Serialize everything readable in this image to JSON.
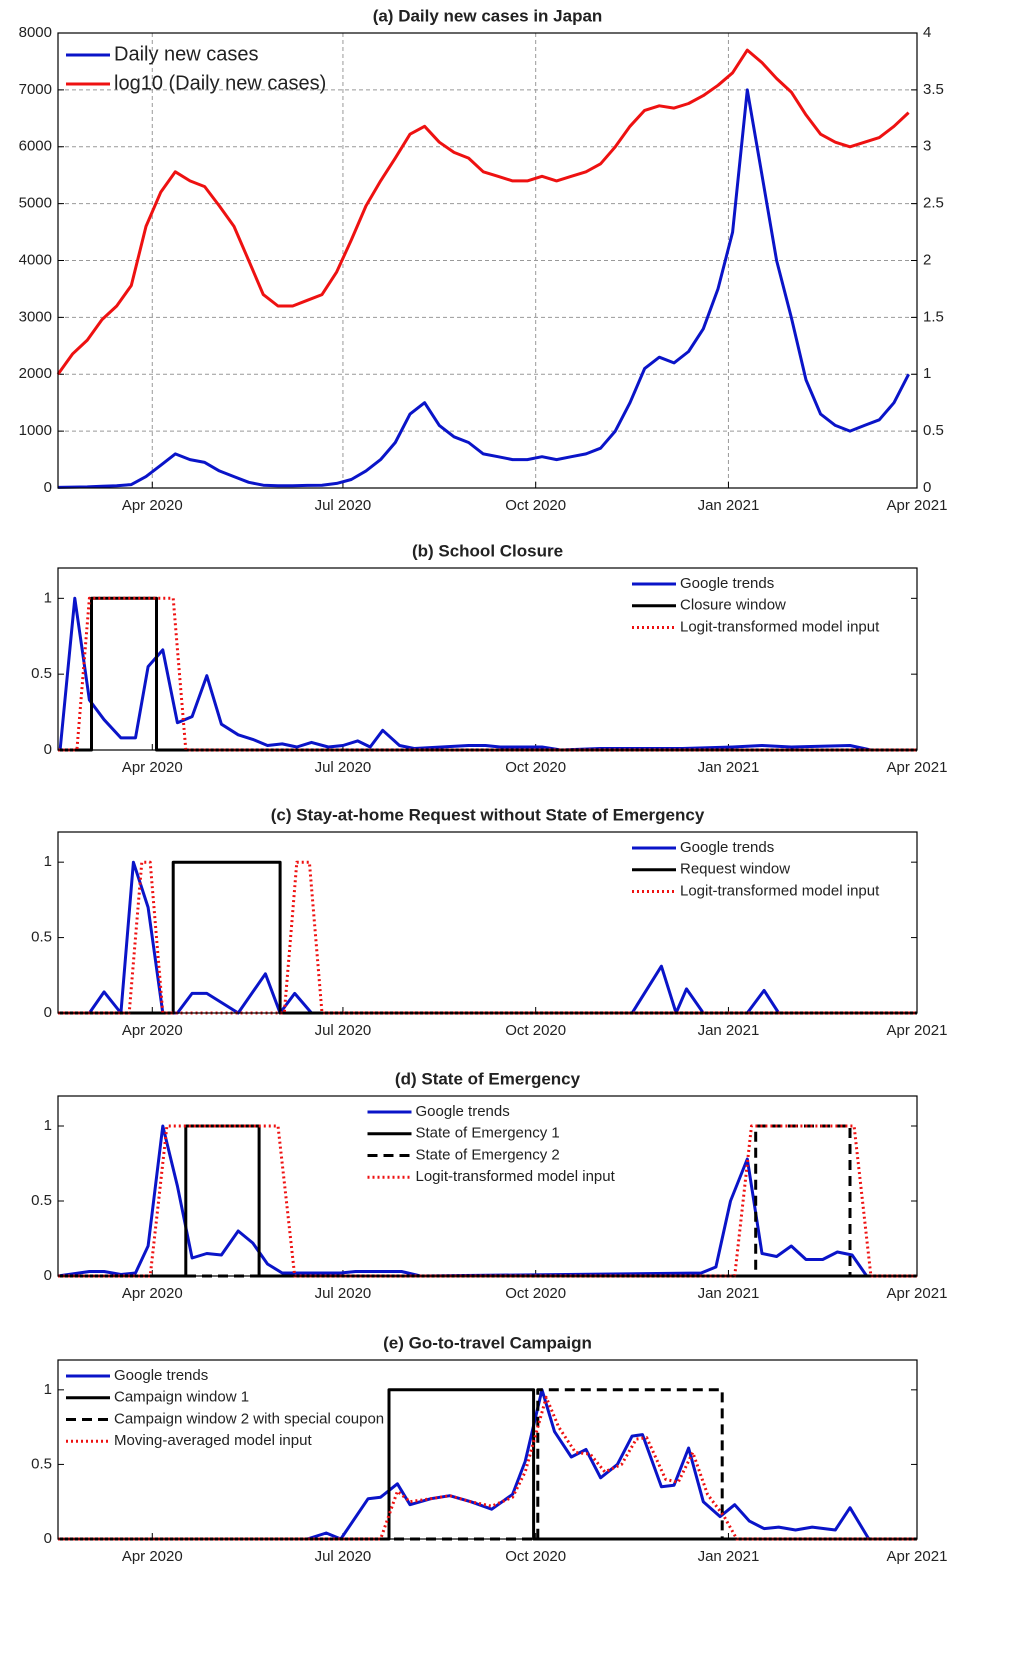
{
  "chart_data": [
    {
      "type": "line",
      "title": "(a) Daily new cases in Japan",
      "grid": true,
      "legend": "northwest",
      "legend_size": 20,
      "xlim": [
        46,
        456
      ],
      "xticks": [
        {
          "value": 91,
          "label": "Apr 2020"
        },
        {
          "value": 182,
          "label": "Jul 2020"
        },
        {
          "value": 274,
          "label": "Oct 2020"
        },
        {
          "value": 366,
          "label": "Jan 2021"
        },
        {
          "value": 456,
          "label": "Apr 2021"
        }
      ],
      "ylim": [
        0,
        8000
      ],
      "yticks": [
        0,
        1000,
        2000,
        3000,
        4000,
        5000,
        6000,
        7000,
        8000
      ],
      "y2lim": [
        0,
        4
      ],
      "y2ticks": [
        0,
        0.5,
        1,
        1.5,
        2,
        2.5,
        3,
        3.5,
        4
      ],
      "x": [
        46,
        53,
        60,
        67,
        74,
        81,
        88,
        95,
        102,
        109,
        116,
        123,
        130,
        137,
        144,
        151,
        158,
        165,
        172,
        179,
        186,
        193,
        200,
        207,
        214,
        221,
        228,
        235,
        242,
        249,
        256,
        263,
        270,
        277,
        284,
        291,
        298,
        305,
        312,
        319,
        326,
        333,
        340,
        347,
        354,
        361,
        368,
        375,
        382,
        389,
        396,
        403,
        410,
        417,
        424,
        431,
        438,
        445,
        452
      ],
      "series": [
        {
          "name": "Daily new cases",
          "color": "#0a14c8",
          "values": [
            10,
            15,
            20,
            30,
            40,
            60,
            200,
            400,
            600,
            500,
            450,
            300,
            200,
            100,
            50,
            40,
            40,
            45,
            50,
            80,
            150,
            300,
            500,
            800,
            1300,
            1500,
            1100,
            900,
            800,
            600,
            550,
            500,
            500,
            550,
            500,
            550,
            600,
            700,
            1000,
            1500,
            2100,
            2300,
            2200,
            2400,
            2800,
            3500,
            4500,
            7000,
            5500,
            4000,
            3000,
            1900,
            1300,
            1100,
            1000,
            1100,
            1200,
            1500,
            2000
          ]
        },
        {
          "name": "log10 (Daily new cases)",
          "color": "#ee1111",
          "axis": "y2",
          "values": [
            1,
            1.18,
            1.3,
            1.48,
            1.6,
            1.78,
            2.3,
            2.6,
            2.78,
            2.7,
            2.65,
            2.48,
            2.3,
            2,
            1.7,
            1.6,
            1.6,
            1.65,
            1.7,
            1.9,
            2.18,
            2.48,
            2.7,
            2.9,
            3.11,
            3.18,
            3.04,
            2.95,
            2.9,
            2.78,
            2.74,
            2.7,
            2.7,
            2.74,
            2.7,
            2.74,
            2.78,
            2.85,
            3,
            3.18,
            3.32,
            3.36,
            3.34,
            3.38,
            3.45,
            3.54,
            3.65,
            3.85,
            3.74,
            3.6,
            3.48,
            3.28,
            3.11,
            3.04,
            3,
            3.04,
            3.08,
            3.18,
            3.3
          ]
        }
      ]
    },
    {
      "type": "line",
      "title": "(b) School Closure",
      "grid": false,
      "legend": "northeast",
      "legend_size": 15,
      "xlim": [
        46,
        456
      ],
      "xticks": [
        {
          "value": 91,
          "label": "Apr 2020"
        },
        {
          "value": 182,
          "label": "Jul 2020"
        },
        {
          "value": 274,
          "label": "Oct 2020"
        },
        {
          "value": 366,
          "label": "Jan 2021"
        },
        {
          "value": 456,
          "label": "Apr 2021"
        }
      ],
      "ylim": [
        0,
        1.2
      ],
      "yticks": [
        0,
        0.5,
        1
      ],
      "series": [
        {
          "name": "Google trends",
          "color": "#0a14c8",
          "x": [
            47,
            54,
            61,
            68,
            76,
            83,
            89,
            96,
            103,
            110,
            117,
            124,
            132,
            139,
            146,
            153,
            160,
            167,
            175,
            182,
            189,
            195,
            201,
            209,
            216,
            229,
            242,
            250,
            257,
            264,
            277,
            286,
            305,
            344,
            368,
            382,
            396,
            424,
            434,
            456
          ],
          "values": [
            0,
            1,
            0.33,
            0.2,
            0.08,
            0.08,
            0.55,
            0.66,
            0.18,
            0.22,
            0.49,
            0.17,
            0.1,
            0.07,
            0.03,
            0.04,
            0.02,
            0.05,
            0.02,
            0.03,
            0.06,
            0.02,
            0.13,
            0.03,
            0.01,
            0.02,
            0.03,
            0.03,
            0.02,
            0.02,
            0.02,
            0,
            0.01,
            0.01,
            0.02,
            0.03,
            0.02,
            0.03,
            0,
            0
          ]
        },
        {
          "name": "Closure window",
          "color": "#000000",
          "x": [
            46,
            62,
            62,
            93,
            93,
            456
          ],
          "values": [
            0,
            0,
            1,
            1,
            0,
            0
          ]
        },
        {
          "name": "Logit-transformed model input",
          "color": "#ee1111",
          "dash": "dotted",
          "x": [
            46,
            55,
            58,
            61,
            93,
            101,
            104,
            107,
            456
          ],
          "values": [
            0,
            0,
            0.5,
            1,
            1,
            1,
            0.5,
            0,
            0
          ]
        }
      ]
    },
    {
      "type": "line",
      "title": "(c) Stay-at-home Request without State of Emergency",
      "grid": false,
      "legend": "northeast",
      "legend_size": 15,
      "xlim": [
        46,
        456
      ],
      "xticks": [
        {
          "value": 91,
          "label": "Apr 2020"
        },
        {
          "value": 182,
          "label": "Jul 2020"
        },
        {
          "value": 274,
          "label": "Oct 2020"
        },
        {
          "value": 366,
          "label": "Jan 2021"
        },
        {
          "value": 456,
          "label": "Apr 2021"
        }
      ],
      "ylim": [
        0,
        1.2
      ],
      "yticks": [
        0,
        0.5,
        1
      ],
      "series": [
        {
          "name": "Google trends",
          "color": "#0a14c8",
          "x": [
            46,
            61,
            68,
            76,
            82,
            89,
            96,
            103,
            110,
            117,
            132,
            145,
            152,
            159,
            167,
            320,
            334,
            341,
            346,
            354,
            375,
            383,
            390,
            456
          ],
          "values": [
            0,
            0,
            0.14,
            0,
            1,
            0.7,
            0,
            0,
            0.13,
            0.13,
            0,
            0.26,
            0,
            0.13,
            0,
            0,
            0.31,
            0,
            0.16,
            0,
            0,
            0.15,
            0,
            0
          ]
        },
        {
          "name": "Request window",
          "color": "#000000",
          "x": [
            46,
            101,
            101,
            152,
            152,
            456
          ],
          "values": [
            0,
            0,
            1,
            1,
            0,
            0
          ]
        },
        {
          "name": "Logit-transformed model input",
          "color": "#ee1111",
          "dash": "dotted",
          "x": [
            46,
            80,
            83,
            86,
            90,
            93,
            96,
            154,
            157,
            160,
            166,
            169,
            172,
            456
          ],
          "values": [
            0,
            0,
            0.5,
            1,
            1,
            0.5,
            0,
            0,
            0.5,
            1,
            1,
            0.5,
            0,
            0
          ]
        }
      ]
    },
    {
      "type": "line",
      "title": "(d) State of Emergency",
      "grid": false,
      "legend": "north",
      "legend_size": 15,
      "xlim": [
        46,
        456
      ],
      "xticks": [
        {
          "value": 91,
          "label": "Apr 2020"
        },
        {
          "value": 182,
          "label": "Jul 2020"
        },
        {
          "value": 274,
          "label": "Oct 2020"
        },
        {
          "value": 366,
          "label": "Jan 2021"
        },
        {
          "value": 456,
          "label": "Apr 2021"
        }
      ],
      "ylim": [
        0,
        1.2
      ],
      "yticks": [
        0,
        0.5,
        1
      ],
      "series": [
        {
          "name": "Google trends",
          "color": "#0a14c8",
          "x": [
            46,
            61,
            68,
            76,
            83,
            89,
            96,
            103,
            110,
            117,
            124,
            132,
            139,
            146,
            153,
            181,
            188,
            210,
            219,
            353,
            360,
            367,
            375,
            382,
            389,
            396,
            403,
            411,
            418,
            425,
            432,
            456
          ],
          "values": [
            0,
            0.03,
            0.03,
            0.01,
            0.02,
            0.2,
            1,
            0.6,
            0.12,
            0.15,
            0.14,
            0.3,
            0.22,
            0.08,
            0.02,
            0.02,
            0.03,
            0.03,
            0,
            0.02,
            0.06,
            0.5,
            0.78,
            0.15,
            0.13,
            0.2,
            0.11,
            0.11,
            0.16,
            0.14,
            0,
            0
          ]
        },
        {
          "name": "State of Emergency 1",
          "color": "#000000",
          "x": [
            46,
            107,
            107,
            142,
            142,
            456
          ],
          "values": [
            0,
            0,
            1,
            1,
            0,
            0
          ]
        },
        {
          "name": "State of Emergency 2",
          "color": "#000000",
          "dash": "dashed",
          "x": [
            46,
            379,
            379,
            424,
            424,
            456
          ],
          "values": [
            0,
            0,
            1,
            1,
            0,
            0
          ]
        },
        {
          "name": "Logit-transformed model input",
          "color": "#ee1111",
          "dash": "dotted",
          "x": [
            46,
            90,
            94,
            98,
            151,
            155,
            159,
            369,
            373,
            377,
            426,
            430,
            434,
            456
          ],
          "values": [
            0,
            0,
            0.5,
            1,
            1,
            0.5,
            0,
            0,
            0.5,
            1,
            1,
            0.5,
            0,
            0
          ]
        }
      ]
    },
    {
      "type": "line",
      "title": "(e) Go-to-travel Campaign",
      "grid": false,
      "legend": "northwest",
      "legend_size": 15,
      "xlim": [
        46,
        456
      ],
      "xticks": [
        {
          "value": 91,
          "label": "Apr 2020"
        },
        {
          "value": 182,
          "label": "Jul 2020"
        },
        {
          "value": 274,
          "label": "Oct 2020"
        },
        {
          "value": 366,
          "label": "Jan 2021"
        },
        {
          "value": 456,
          "label": "Apr 2021"
        }
      ],
      "ylim": [
        0,
        1.2
      ],
      "yticks": [
        0,
        0.5,
        1
      ],
      "series": [
        {
          "name": "Google trends",
          "color": "#0a14c8",
          "x": [
            46,
            165,
            174,
            181,
            194,
            200,
            208,
            214,
            224,
            233,
            243,
            253,
            263,
            269,
            277,
            283,
            291,
            298,
            305,
            313,
            320,
            325,
            334,
            340,
            347,
            354,
            362,
            369,
            376,
            383,
            390,
            398,
            406,
            417,
            424,
            433,
            456
          ],
          "values": [
            0,
            0,
            0.04,
            0,
            0.27,
            0.28,
            0.37,
            0.23,
            0.27,
            0.29,
            0.25,
            0.2,
            0.3,
            0.52,
            1,
            0.72,
            0.55,
            0.6,
            0.41,
            0.5,
            0.69,
            0.7,
            0.35,
            0.36,
            0.61,
            0.25,
            0.15,
            0.23,
            0.12,
            0.07,
            0.08,
            0.06,
            0.08,
            0.06,
            0.21,
            0,
            0
          ]
        },
        {
          "name": "Campaign window 1",
          "color": "#000000",
          "x": [
            46,
            204,
            204,
            273,
            273,
            456
          ],
          "values": [
            0,
            0,
            1,
            1,
            0,
            0
          ]
        },
        {
          "name": "Campaign window 2 with special coupon",
          "color": "#000000",
          "dash": "dashed",
          "x": [
            46,
            275,
            275,
            363,
            363,
            456
          ],
          "values": [
            0,
            0,
            1,
            1,
            0,
            0
          ]
        },
        {
          "name": "Moving-averaged model input",
          "color": "#ee1111",
          "dash": "dotted",
          "x": [
            46,
            200,
            208,
            214,
            224,
            233,
            243,
            253,
            263,
            269,
            279,
            285,
            293,
            300,
            307,
            315,
            322,
            327,
            336,
            342,
            349,
            356,
            364,
            370,
            456
          ],
          "values": [
            0,
            0,
            0.32,
            0.25,
            0.27,
            0.29,
            0.25,
            0.22,
            0.28,
            0.45,
            0.95,
            0.75,
            0.58,
            0.57,
            0.45,
            0.5,
            0.67,
            0.68,
            0.4,
            0.38,
            0.58,
            0.3,
            0.15,
            0,
            0
          ]
        }
      ]
    }
  ]
}
